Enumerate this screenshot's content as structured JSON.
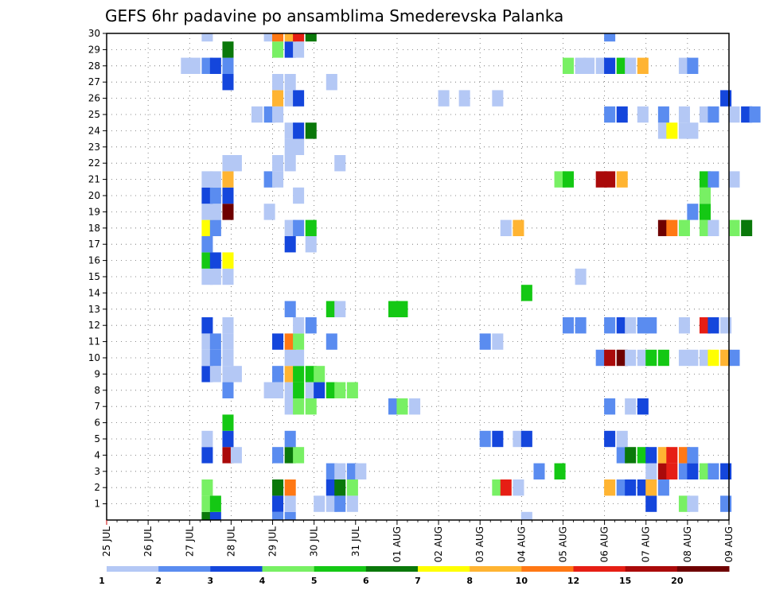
{
  "chart_data": {
    "type": "heatmap",
    "title": "GEFS 6hr padavine po ansamblima Smederevska Palanka",
    "xlabel": "",
    "ylabel": "",
    "x_tick_labels": [
      "25 JUL",
      "26 JUL",
      "27 JUL",
      "28 JUL",
      "29 JUL",
      "30 JUL",
      "31 JUL",
      "01 AUG",
      "02 AUG",
      "03 AUG",
      "04 AUG",
      "05 AUG",
      "06 AUG",
      "07 AUG",
      "08 AUG",
      "09 AUG"
    ],
    "y_tick_labels": [
      "1",
      "2",
      "3",
      "4",
      "5",
      "6",
      "7",
      "8",
      "9",
      "10",
      "11",
      "12",
      "13",
      "14",
      "15",
      "16",
      "17",
      "18",
      "19",
      "20",
      "21",
      "22",
      "23",
      "24",
      "25",
      "26",
      "27",
      "28",
      "29",
      "30"
    ],
    "ylim": [
      0,
      30
    ],
    "grid": true,
    "levels": [
      "1",
      "2",
      "3",
      "4",
      "5",
      "6",
      "7",
      "8",
      "10",
      "12",
      "15",
      "20"
    ],
    "colors": [
      "#b4c8f5",
      "#5a8cf0",
      "#1446dc",
      "#78f064",
      "#14c814",
      "#0a780a",
      "#ffff00",
      "#ffb432",
      "#ff7814",
      "#e61e14",
      "#aa0a0a",
      "#6e0000"
    ],
    "cells": [
      [
        0,
        "#0a780a",
        2.3
      ],
      [
        0,
        "#1446dc",
        2.5
      ],
      [
        0,
        "#5a8cf0",
        4.0
      ],
      [
        0,
        "#5a8cf0",
        4.3
      ],
      [
        0,
        "#b4c8f5",
        10.0
      ],
      [
        1,
        "#78f064",
        2.3
      ],
      [
        1,
        "#14c814",
        2.5
      ],
      [
        1,
        "#1446dc",
        4.0
      ],
      [
        1,
        "#b4c8f5",
        4.3
      ],
      [
        1,
        "#b4c8f5",
        5.0
      ],
      [
        1,
        "#b4c8f5",
        5.3
      ],
      [
        1,
        "#5a8cf0",
        5.5
      ],
      [
        1,
        "#b4c8f5",
        5.8
      ],
      [
        1,
        "#1446dc",
        13.0
      ],
      [
        1,
        "#78f064",
        13.8
      ],
      [
        1,
        "#b4c8f5",
        14.0
      ],
      [
        1,
        "#5a8cf0",
        14.8
      ],
      [
        2,
        "#78f064",
        2.3
      ],
      [
        2,
        "#0a780a",
        4.0
      ],
      [
        2,
        "#ff7814",
        4.3
      ],
      [
        2,
        "#1446dc",
        5.3
      ],
      [
        2,
        "#0a780a",
        5.5
      ],
      [
        2,
        "#78f064",
        5.8
      ],
      [
        2,
        "#78f064",
        9.3
      ],
      [
        2,
        "#e61e14",
        9.5
      ],
      [
        2,
        "#b4c8f5",
        9.8
      ],
      [
        2,
        "#ffb432",
        12.0
      ],
      [
        2,
        "#5a8cf0",
        12.3
      ],
      [
        2,
        "#1446dc",
        12.5
      ],
      [
        2,
        "#1446dc",
        12.8
      ],
      [
        2,
        "#ffb432",
        13.0
      ],
      [
        2,
        "#5a8cf0",
        13.3
      ],
      [
        3,
        "#5a8cf0",
        5.3
      ],
      [
        3,
        "#b4c8f5",
        5.5
      ],
      [
        3,
        "#5a8cf0",
        5.8
      ],
      [
        3,
        "#b4c8f5",
        6.0
      ],
      [
        3,
        "#5a8cf0",
        10.3
      ],
      [
        3,
        "#14c814",
        10.8
      ],
      [
        3,
        "#b4c8f5",
        13.0
      ],
      [
        3,
        "#aa0a0a",
        13.3
      ],
      [
        3,
        "#e61e14",
        13.5
      ],
      [
        3,
        "#5a8cf0",
        13.8
      ],
      [
        3,
        "#1446dc",
        14.0
      ],
      [
        3,
        "#78f064",
        14.3
      ],
      [
        3,
        "#5a8cf0",
        14.5
      ],
      [
        3,
        "#1446dc",
        14.8
      ],
      [
        4,
        "#1446dc",
        2.3
      ],
      [
        4,
        "#aa0a0a",
        2.8
      ],
      [
        4,
        "#b4c8f5",
        3.0
      ],
      [
        4,
        "#5a8cf0",
        4.0
      ],
      [
        4,
        "#0a780a",
        4.3
      ],
      [
        4,
        "#78f064",
        4.5
      ],
      [
        4,
        "#5a8cf0",
        12.3
      ],
      [
        4,
        "#0a780a",
        12.5
      ],
      [
        4,
        "#14c814",
        12.8
      ],
      [
        4,
        "#1446dc",
        13.0
      ],
      [
        4,
        "#ffb432",
        13.3
      ],
      [
        4,
        "#e61e14",
        13.5
      ],
      [
        4,
        "#ff7814",
        13.8
      ],
      [
        4,
        "#5a8cf0",
        14.0
      ],
      [
        5,
        "#b4c8f5",
        2.3
      ],
      [
        5,
        "#1446dc",
        2.8
      ],
      [
        5,
        "#5a8cf0",
        4.3
      ],
      [
        5,
        "#5a8cf0",
        9.0
      ],
      [
        5,
        "#1446dc",
        9.3
      ],
      [
        5,
        "#b4c8f5",
        9.8
      ],
      [
        5,
        "#1446dc",
        10.0
      ],
      [
        5,
        "#1446dc",
        12.0
      ],
      [
        5,
        "#b4c8f5",
        12.3
      ],
      [
        6,
        "#14c814",
        2.8
      ],
      [
        7,
        "#b4c8f5",
        4.3
      ],
      [
        7,
        "#78f064",
        4.5
      ],
      [
        7,
        "#78f064",
        4.8
      ],
      [
        7,
        "#5a8cf0",
        6.8
      ],
      [
        7,
        "#78f064",
        7.0
      ],
      [
        7,
        "#b4c8f5",
        7.3
      ],
      [
        7,
        "#5a8cf0",
        12.0
      ],
      [
        7,
        "#b4c8f5",
        12.5
      ],
      [
        7,
        "#1446dc",
        12.8
      ],
      [
        8,
        "#5a8cf0",
        2.8
      ],
      [
        8,
        "#b4c8f5",
        3.8
      ],
      [
        8,
        "#b4c8f5",
        4.0
      ],
      [
        8,
        "#b4c8f5",
        4.3
      ],
      [
        8,
        "#14c814",
        4.5
      ],
      [
        8,
        "#b4c8f5",
        4.8
      ],
      [
        8,
        "#1446dc",
        5.0
      ],
      [
        8,
        "#14c814",
        5.3
      ],
      [
        8,
        "#78f064",
        5.5
      ],
      [
        8,
        "#78f064",
        5.8
      ],
      [
        9,
        "#1446dc",
        2.3
      ],
      [
        9,
        "#b4c8f5",
        2.5
      ],
      [
        9,
        "#b4c8f5",
        2.8
      ],
      [
        9,
        "#b4c8f5",
        3.0
      ],
      [
        9,
        "#5a8cf0",
        4.0
      ],
      [
        9,
        "#ffb432",
        4.3
      ],
      [
        9,
        "#14c814",
        4.5
      ],
      [
        9,
        "#14c814",
        4.8
      ],
      [
        9,
        "#78f064",
        5.0
      ],
      [
        10,
        "#b4c8f5",
        2.3
      ],
      [
        10,
        "#5a8cf0",
        2.5
      ],
      [
        10,
        "#b4c8f5",
        2.8
      ],
      [
        10,
        "#b4c8f5",
        4.3
      ],
      [
        10,
        "#b4c8f5",
        4.5
      ],
      [
        10,
        "#5a8cf0",
        11.8
      ],
      [
        10,
        "#aa0a0a",
        12.0
      ],
      [
        10,
        "#6e0000",
        12.3
      ],
      [
        10,
        "#b4c8f5",
        12.5
      ],
      [
        10,
        "#b4c8f5",
        12.8
      ],
      [
        10,
        "#14c814",
        13.0
      ],
      [
        10,
        "#14c814",
        13.3
      ],
      [
        10,
        "#b4c8f5",
        13.8
      ],
      [
        10,
        "#b4c8f5",
        14.0
      ],
      [
        10,
        "#b4c8f5",
        14.3
      ],
      [
        10,
        "#ffff00",
        14.5
      ],
      [
        10,
        "#ffb432",
        14.8
      ],
      [
        10,
        "#5a8cf0",
        15.0
      ],
      [
        11,
        "#b4c8f5",
        2.3
      ],
      [
        11,
        "#5a8cf0",
        2.5
      ],
      [
        11,
        "#b4c8f5",
        2.8
      ],
      [
        11,
        "#1446dc",
        4.0
      ],
      [
        11,
        "#ff7814",
        4.3
      ],
      [
        11,
        "#78f064",
        4.5
      ],
      [
        11,
        "#5a8cf0",
        5.3
      ],
      [
        11,
        "#5a8cf0",
        9.0
      ],
      [
        11,
        "#b4c8f5",
        9.3
      ],
      [
        12,
        "#1446dc",
        2.3
      ],
      [
        12,
        "#b4c8f5",
        2.8
      ],
      [
        12,
        "#b4c8f5",
        4.5
      ],
      [
        12,
        "#5a8cf0",
        4.8
      ],
      [
        12,
        "#5a8cf0",
        11.0
      ],
      [
        12,
        "#5a8cf0",
        11.3
      ],
      [
        12,
        "#5a8cf0",
        12.0
      ],
      [
        12,
        "#1446dc",
        12.3
      ],
      [
        12,
        "#b4c8f5",
        12.5
      ],
      [
        12,
        "#5a8cf0",
        12.8
      ],
      [
        12,
        "#5a8cf0",
        13.0
      ],
      [
        12,
        "#b4c8f5",
        13.8
      ],
      [
        12,
        "#e61e14",
        14.3
      ],
      [
        12,
        "#1446dc",
        14.5
      ],
      [
        12,
        "#b4c8f5",
        14.8
      ],
      [
        13,
        "#5a8cf0",
        4.3
      ],
      [
        13,
        "#14c814",
        5.3
      ],
      [
        13,
        "#b4c8f5",
        5.5
      ],
      [
        13,
        "#14c814",
        6.8
      ],
      [
        13,
        "#14c814",
        7.0
      ],
      [
        14,
        "#14c814",
        10.0
      ],
      [
        15,
        "#b4c8f5",
        2.3
      ],
      [
        15,
        "#b4c8f5",
        2.5
      ],
      [
        15,
        "#b4c8f5",
        2.8
      ],
      [
        15,
        "#b4c8f5",
        11.3
      ],
      [
        16,
        "#14c814",
        2.3
      ],
      [
        16,
        "#1446dc",
        2.5
      ],
      [
        16,
        "#ffff00",
        2.8
      ],
      [
        17,
        "#5a8cf0",
        2.3
      ],
      [
        17,
        "#1446dc",
        4.3
      ],
      [
        17,
        "#b4c8f5",
        4.8
      ],
      [
        18,
        "#ffff00",
        2.3
      ],
      [
        18,
        "#5a8cf0",
        2.5
      ],
      [
        18,
        "#b4c8f5",
        4.3
      ],
      [
        18,
        "#5a8cf0",
        4.5
      ],
      [
        18,
        "#14c814",
        4.8
      ],
      [
        18,
        "#b4c8f5",
        9.5
      ],
      [
        18,
        "#ffb432",
        9.8
      ],
      [
        18,
        "#6e0000",
        13.3
      ],
      [
        18,
        "#ff7814",
        13.5
      ],
      [
        18,
        "#78f064",
        13.8
      ],
      [
        18,
        "#78f064",
        14.3
      ],
      [
        18,
        "#b4c8f5",
        14.5
      ],
      [
        18,
        "#78f064",
        15.0
      ],
      [
        18,
        "#0a780a",
        15.3
      ],
      [
        19,
        "#b4c8f5",
        2.3
      ],
      [
        19,
        "#b4c8f5",
        2.5
      ],
      [
        19,
        "#6e0000",
        2.8
      ],
      [
        19,
        "#b4c8f5",
        3.8
      ],
      [
        19,
        "#5a8cf0",
        14.0
      ],
      [
        19,
        "#14c814",
        14.3
      ],
      [
        20,
        "#1446dc",
        2.3
      ],
      [
        20,
        "#5a8cf0",
        2.5
      ],
      [
        20,
        "#1446dc",
        2.8
      ],
      [
        20,
        "#b4c8f5",
        4.5
      ],
      [
        20,
        "#78f064",
        14.3
      ],
      [
        21,
        "#b4c8f5",
        2.3
      ],
      [
        21,
        "#b4c8f5",
        2.5
      ],
      [
        21,
        "#ffb432",
        2.8
      ],
      [
        21,
        "#5a8cf0",
        3.8
      ],
      [
        21,
        "#b4c8f5",
        4.0
      ],
      [
        21,
        "#78f064",
        10.8
      ],
      [
        21,
        "#14c814",
        11.0
      ],
      [
        21,
        "#aa0a0a",
        11.8
      ],
      [
        21,
        "#aa0a0a",
        12.0
      ],
      [
        21,
        "#ffb432",
        12.3
      ],
      [
        21,
        "#14c814",
        14.3
      ],
      [
        21,
        "#5a8cf0",
        14.5
      ],
      [
        21,
        "#b4c8f5",
        15.0
      ],
      [
        22,
        "#b4c8f5",
        2.8
      ],
      [
        22,
        "#b4c8f5",
        3.0
      ],
      [
        22,
        "#b4c8f5",
        4.0
      ],
      [
        22,
        "#b4c8f5",
        4.3
      ],
      [
        22,
        "#b4c8f5",
        5.5
      ],
      [
        23,
        "#b4c8f5",
        4.3
      ],
      [
        23,
        "#b4c8f5",
        4.5
      ],
      [
        24,
        "#b4c8f5",
        4.3
      ],
      [
        24,
        "#1446dc",
        4.5
      ],
      [
        24,
        "#0a780a",
        4.8
      ],
      [
        24,
        "#b4c8f5",
        13.3
      ],
      [
        24,
        "#ffff00",
        13.5
      ],
      [
        24,
        "#b4c8f5",
        13.8
      ],
      [
        24,
        "#b4c8f5",
        14.0
      ],
      [
        25,
        "#b4c8f5",
        3.5
      ],
      [
        25,
        "#5a8cf0",
        3.8
      ],
      [
        25,
        "#b4c8f5",
        4.0
      ],
      [
        25,
        "#5a8cf0",
        12.0
      ],
      [
        25,
        "#1446dc",
        12.3
      ],
      [
        25,
        "#b4c8f5",
        12.8
      ],
      [
        25,
        "#5a8cf0",
        13.3
      ],
      [
        25,
        "#b4c8f5",
        13.8
      ],
      [
        25,
        "#b4c8f5",
        14.3
      ],
      [
        25,
        "#5a8cf0",
        14.5
      ],
      [
        25,
        "#b4c8f5",
        15.0
      ],
      [
        25,
        "#1446dc",
        15.3
      ],
      [
        25,
        "#5a8cf0",
        15.5
      ],
      [
        26,
        "#ffb432",
        4.0
      ],
      [
        26,
        "#b4c8f5",
        4.3
      ],
      [
        26,
        "#1446dc",
        4.5
      ],
      [
        26,
        "#b4c8f5",
        8.0
      ],
      [
        26,
        "#b4c8f5",
        8.5
      ],
      [
        26,
        "#b4c8f5",
        9.3
      ],
      [
        26,
        "#1446dc",
        14.8
      ],
      [
        27,
        "#1446dc",
        2.8
      ],
      [
        27,
        "#b4c8f5",
        4.0
      ],
      [
        27,
        "#b4c8f5",
        4.3
      ],
      [
        27,
        "#b4c8f5",
        5.3
      ],
      [
        28,
        "#b4c8f5",
        1.8
      ],
      [
        28,
        "#b4c8f5",
        2.0
      ],
      [
        28,
        "#5a8cf0",
        2.3
      ],
      [
        28,
        "#1446dc",
        2.5
      ],
      [
        28,
        "#5a8cf0",
        2.8
      ],
      [
        28,
        "#78f064",
        11.0
      ],
      [
        28,
        "#b4c8f5",
        11.3
      ],
      [
        28,
        "#b4c8f5",
        11.5
      ],
      [
        28,
        "#b4c8f5",
        11.8
      ],
      [
        28,
        "#1446dc",
        12.0
      ],
      [
        28,
        "#14c814",
        12.3
      ],
      [
        28,
        "#b4c8f5",
        12.5
      ],
      [
        28,
        "#ffb432",
        12.8
      ],
      [
        28,
        "#b4c8f5",
        13.8
      ],
      [
        28,
        "#5a8cf0",
        14.0
      ],
      [
        29,
        "#0a780a",
        2.8
      ],
      [
        29,
        "#78f064",
        4.0
      ],
      [
        29,
        "#1446dc",
        4.3
      ],
      [
        29,
        "#b4c8f5",
        4.5
      ],
      [
        30,
        "#b4c8f5",
        2.3
      ],
      [
        30,
        "#b4c8f5",
        3.8
      ],
      [
        30,
        "#ff7814",
        4.0
      ],
      [
        30,
        "#ffb432",
        4.3
      ],
      [
        30,
        "#e61e14",
        4.5
      ],
      [
        30,
        "#0a780a",
        4.8
      ],
      [
        30,
        "#5a8cf0",
        12.0
      ]
    ]
  }
}
